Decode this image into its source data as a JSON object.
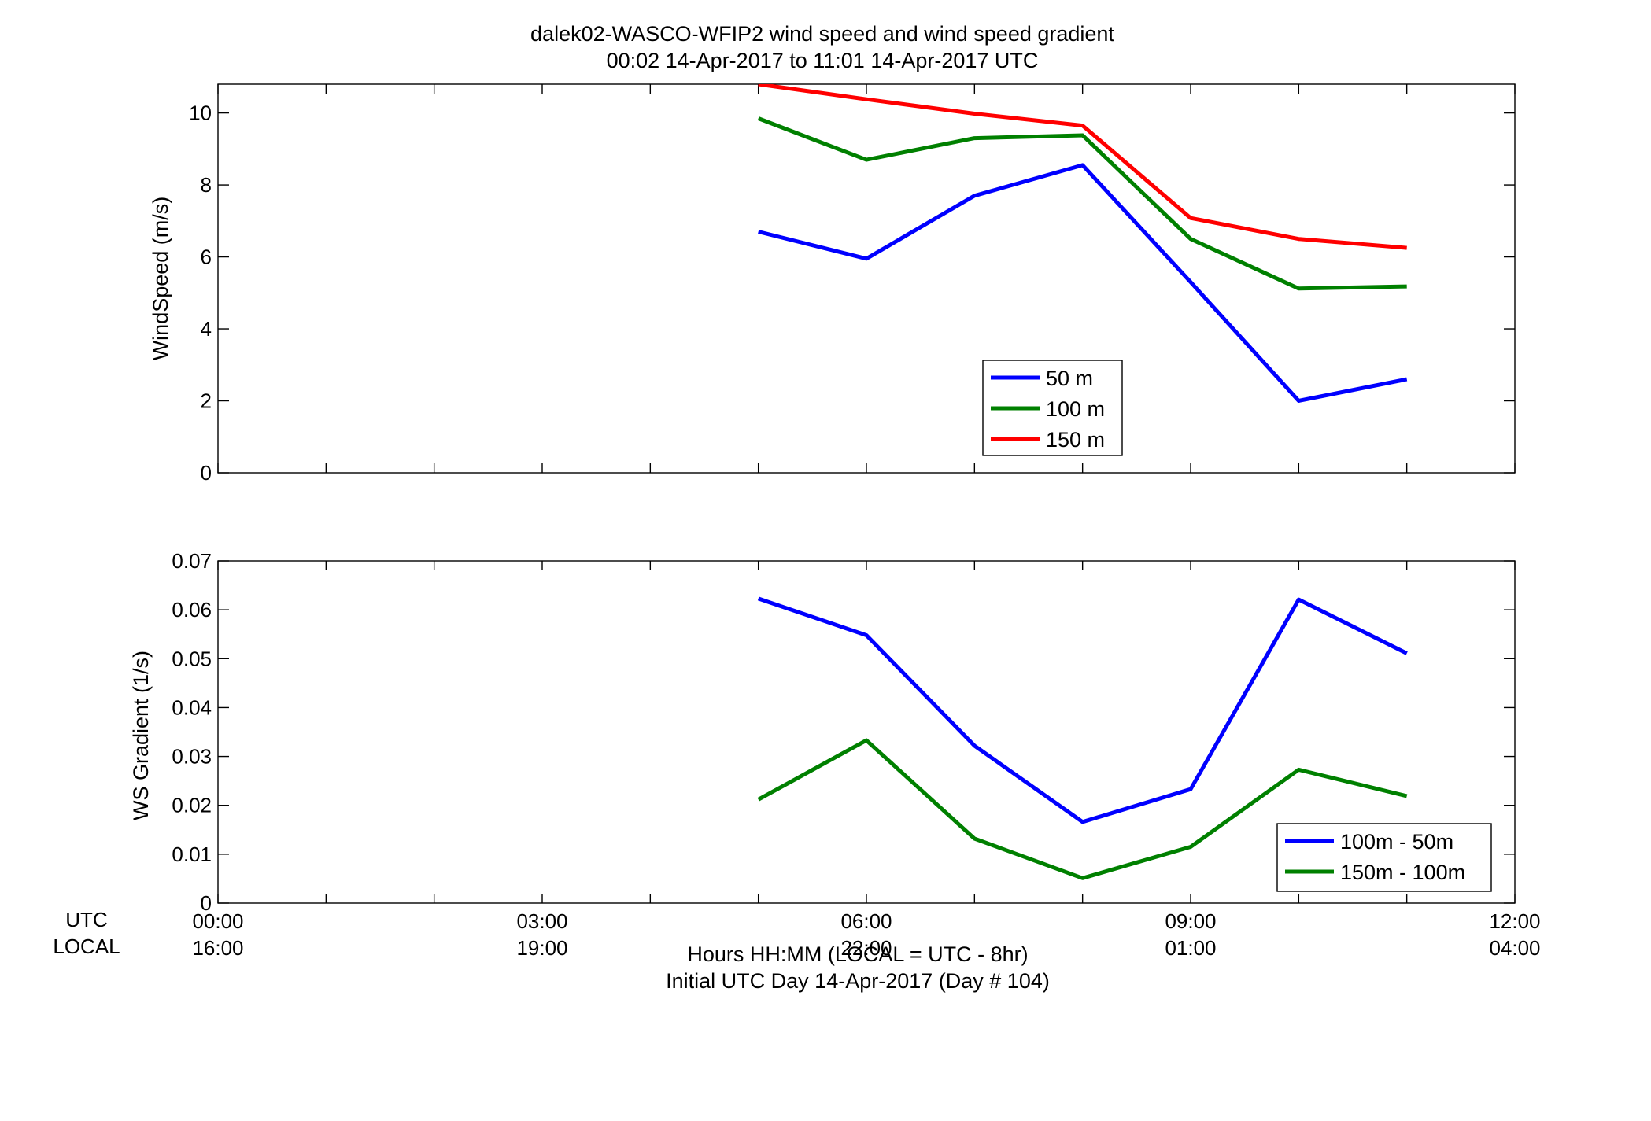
{
  "title_line1": "dalek02-WASCO-WFIP2  wind speed and wind speed gradient",
  "title_line2": "00:02 14-Apr-2017 to 11:01 14-Apr-2017  UTC",
  "row_labels": {
    "utc": "UTC",
    "local": "LOCAL"
  },
  "xlabel_line1": "Hours HH:MM  (LOCAL = UTC - 8hr)",
  "xlabel_line2": "Initial UTC Day 14-Apr-2017 (Day # 104)",
  "x_ticks_utc": [
    "00:00",
    "03:00",
    "06:00",
    "09:00",
    "12:00"
  ],
  "x_ticks_local": [
    "16:00",
    "19:00",
    "22:00",
    "01:00",
    "04:00"
  ],
  "chart_data": [
    {
      "type": "line",
      "ylabel": "WindSpeed (m/s)",
      "xlim": [
        0,
        12
      ],
      "ylim": [
        0,
        10.8
      ],
      "y_ticks": [
        0,
        2,
        4,
        6,
        8,
        10
      ],
      "y_tick_labels": [
        "0",
        "2",
        "4",
        "6",
        "8",
        "10"
      ],
      "x": [
        5,
        6,
        7,
        8,
        9,
        10,
        11
      ],
      "legend_placement": "lower-right",
      "series": [
        {
          "name": "50 m",
          "color": "#0000ff",
          "values": [
            6.7,
            5.95,
            7.7,
            8.55,
            5.3,
            2.0,
            2.6
          ]
        },
        {
          "name": "100 m",
          "color": "#008000",
          "values": [
            9.85,
            8.7,
            9.3,
            9.38,
            6.5,
            5.12,
            5.18
          ]
        },
        {
          "name": "150 m",
          "color": "#ff0000",
          "values": [
            10.8,
            10.38,
            9.98,
            9.65,
            7.08,
            6.5,
            6.25
          ]
        }
      ]
    },
    {
      "type": "line",
      "ylabel": "WS Gradient (1/s)",
      "xlim": [
        0,
        12
      ],
      "ylim": [
        0,
        0.07
      ],
      "y_ticks": [
        0,
        0.01,
        0.02,
        0.03,
        0.04,
        0.05,
        0.06,
        0.07
      ],
      "y_tick_labels": [
        "0",
        "0.01",
        "0.02",
        "0.03",
        "0.04",
        "0.05",
        "0.06",
        "0.07"
      ],
      "x": [
        5,
        6,
        7,
        8,
        9,
        10,
        11
      ],
      "legend_placement": "lower-right",
      "series": [
        {
          "name": "100m - 50m",
          "color": "#0000ff",
          "values": [
            0.0623,
            0.0548,
            0.0322,
            0.0166,
            0.0233,
            0.0621,
            0.0511
          ]
        },
        {
          "name": "150m - 100m",
          "color": "#008000",
          "values": [
            0.0212,
            0.0333,
            0.0132,
            0.0051,
            0.0115,
            0.0273,
            0.0219
          ]
        }
      ]
    }
  ]
}
